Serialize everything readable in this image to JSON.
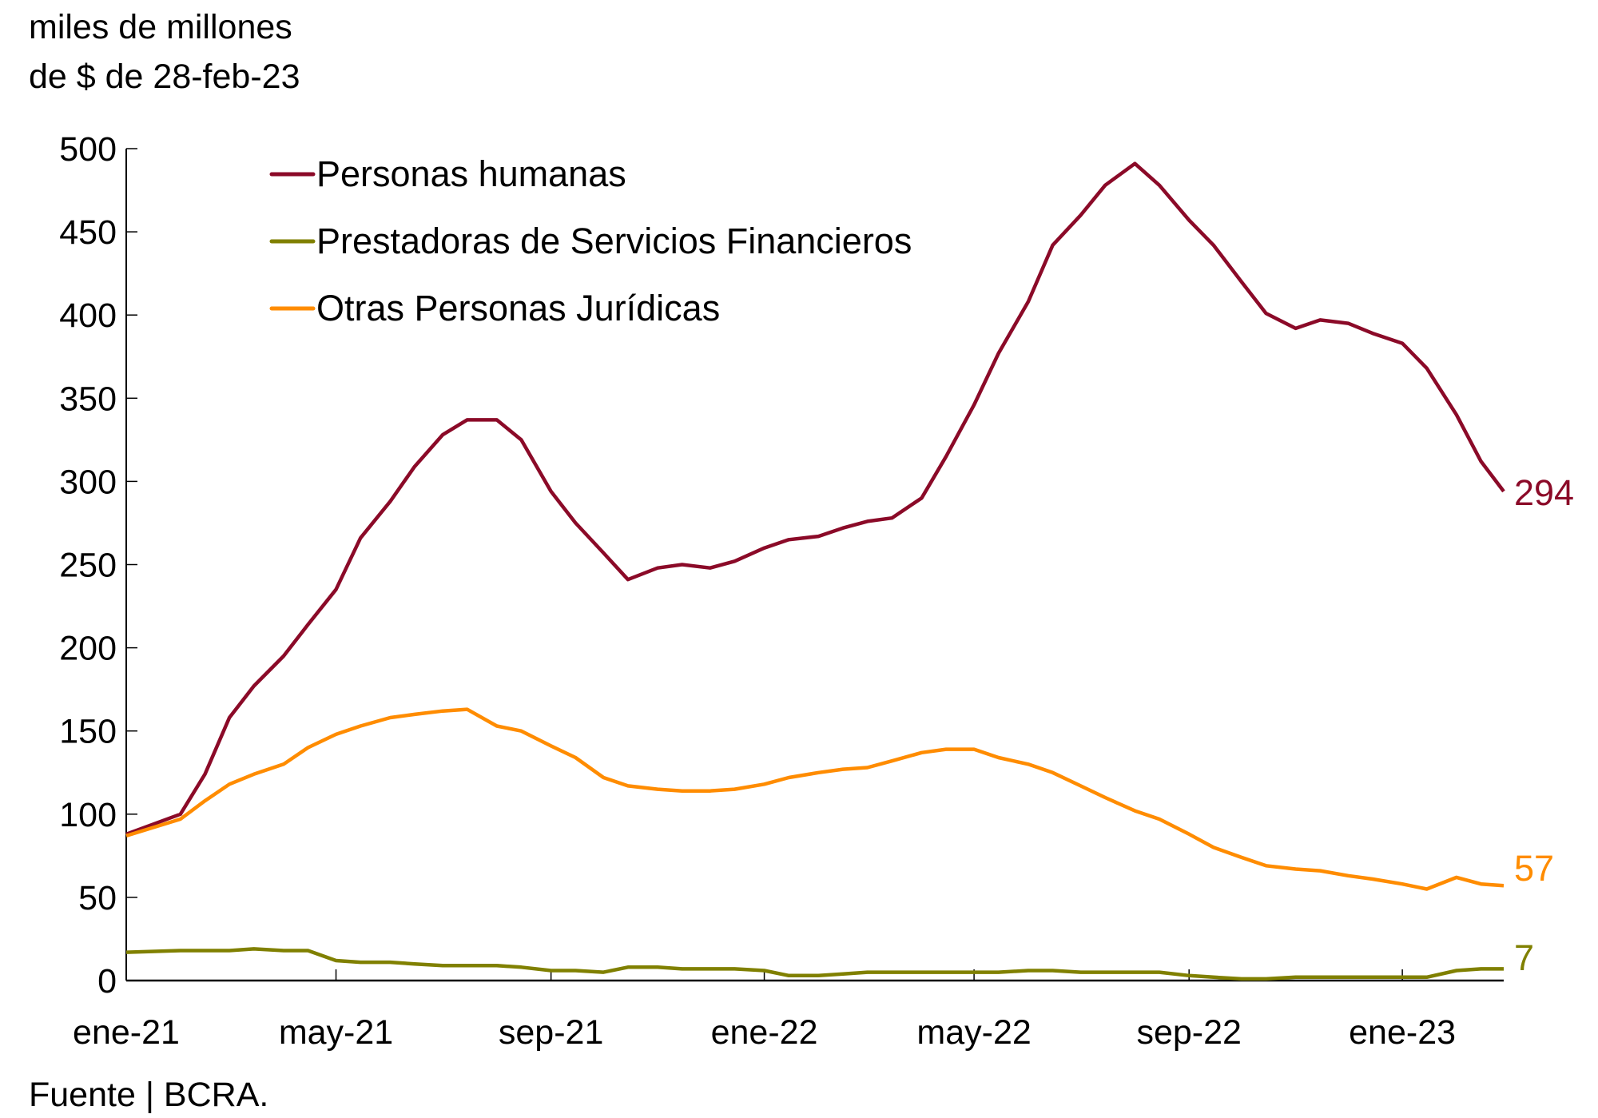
{
  "chart_data": {
    "type": "line",
    "ylabel_lines": [
      "miles de millones",
      "de $ de 28-feb-23"
    ],
    "source": "Fuente | BCRA.",
    "ylim": [
      0,
      500
    ],
    "yticks": [
      0,
      50,
      100,
      150,
      200,
      250,
      300,
      350,
      400,
      450,
      500
    ],
    "xlim": [
      "2021-01-01",
      "2023-02-28"
    ],
    "xticks": [
      {
        "date": "2021-01-01",
        "label": "ene-21"
      },
      {
        "date": "2021-05-01",
        "label": "may-21"
      },
      {
        "date": "2021-09-01",
        "label": "sep-21"
      },
      {
        "date": "2022-01-01",
        "label": "ene-22"
      },
      {
        "date": "2022-05-01",
        "label": "may-22"
      },
      {
        "date": "2022-09-01",
        "label": "sep-22"
      },
      {
        "date": "2023-01-01",
        "label": "ene-23"
      }
    ],
    "grid": false,
    "legend_position": "top-left",
    "x": [
      "2021-01-01",
      "2021-02-01",
      "2021-02-15",
      "2021-03-01",
      "2021-03-15",
      "2021-04-01",
      "2021-04-15",
      "2021-05-01",
      "2021-05-15",
      "2021-06-01",
      "2021-06-15",
      "2021-07-01",
      "2021-07-15",
      "2021-08-01",
      "2021-08-15",
      "2021-09-01",
      "2021-09-15",
      "2021-10-01",
      "2021-10-15",
      "2021-11-01",
      "2021-11-15",
      "2021-12-01",
      "2021-12-15",
      "2022-01-01",
      "2022-01-15",
      "2022-02-01",
      "2022-02-15",
      "2022-03-01",
      "2022-03-15",
      "2022-04-01",
      "2022-04-15",
      "2022-05-01",
      "2022-05-15",
      "2022-06-01",
      "2022-06-15",
      "2022-07-01",
      "2022-07-15",
      "2022-08-01",
      "2022-08-15",
      "2022-09-01",
      "2022-09-15",
      "2022-10-01",
      "2022-10-15",
      "2022-11-01",
      "2022-11-15",
      "2022-12-01",
      "2022-12-15",
      "2023-01-01",
      "2023-01-15",
      "2023-02-01",
      "2023-02-15",
      "2023-02-28"
    ],
    "series": [
      {
        "name": "Personas humanas",
        "color": "#8B0A28",
        "end_label": "294",
        "values": [
          88,
          100,
          124,
          158,
          177,
          195,
          214,
          235,
          266,
          288,
          309,
          328,
          337,
          337,
          325,
          294,
          275,
          257,
          241,
          248,
          250,
          248,
          252,
          260,
          265,
          267,
          272,
          276,
          278,
          290,
          315,
          346,
          377,
          408,
          442,
          460,
          478,
          491,
          478,
          457,
          442,
          420,
          401,
          392,
          397,
          395,
          389,
          383,
          368,
          340,
          312,
          294
        ]
      },
      {
        "name": "Prestadoras de Servicios Financieros",
        "color": "#808000",
        "end_label": "7",
        "values": [
          17,
          18,
          18,
          18,
          19,
          18,
          18,
          12,
          11,
          11,
          10,
          9,
          9,
          9,
          8,
          6,
          6,
          5,
          8,
          8,
          7,
          7,
          7,
          6,
          3,
          3,
          4,
          5,
          5,
          5,
          5,
          5,
          5,
          6,
          6,
          5,
          5,
          5,
          5,
          3,
          2,
          1,
          1,
          2,
          2,
          2,
          2,
          2,
          2,
          6,
          7,
          7
        ]
      },
      {
        "name": "Otras Personas Jurídicas",
        "color": "#FF8C00",
        "end_label": "57",
        "values": [
          87,
          97,
          108,
          118,
          124,
          130,
          140,
          148,
          153,
          158,
          160,
          162,
          163,
          153,
          150,
          141,
          134,
          122,
          117,
          115,
          114,
          114,
          115,
          118,
          122,
          125,
          127,
          128,
          132,
          137,
          139,
          139,
          134,
          130,
          125,
          117,
          110,
          102,
          97,
          88,
          80,
          74,
          69,
          67,
          66,
          63,
          61,
          58,
          55,
          62,
          58,
          57
        ]
      }
    ]
  }
}
